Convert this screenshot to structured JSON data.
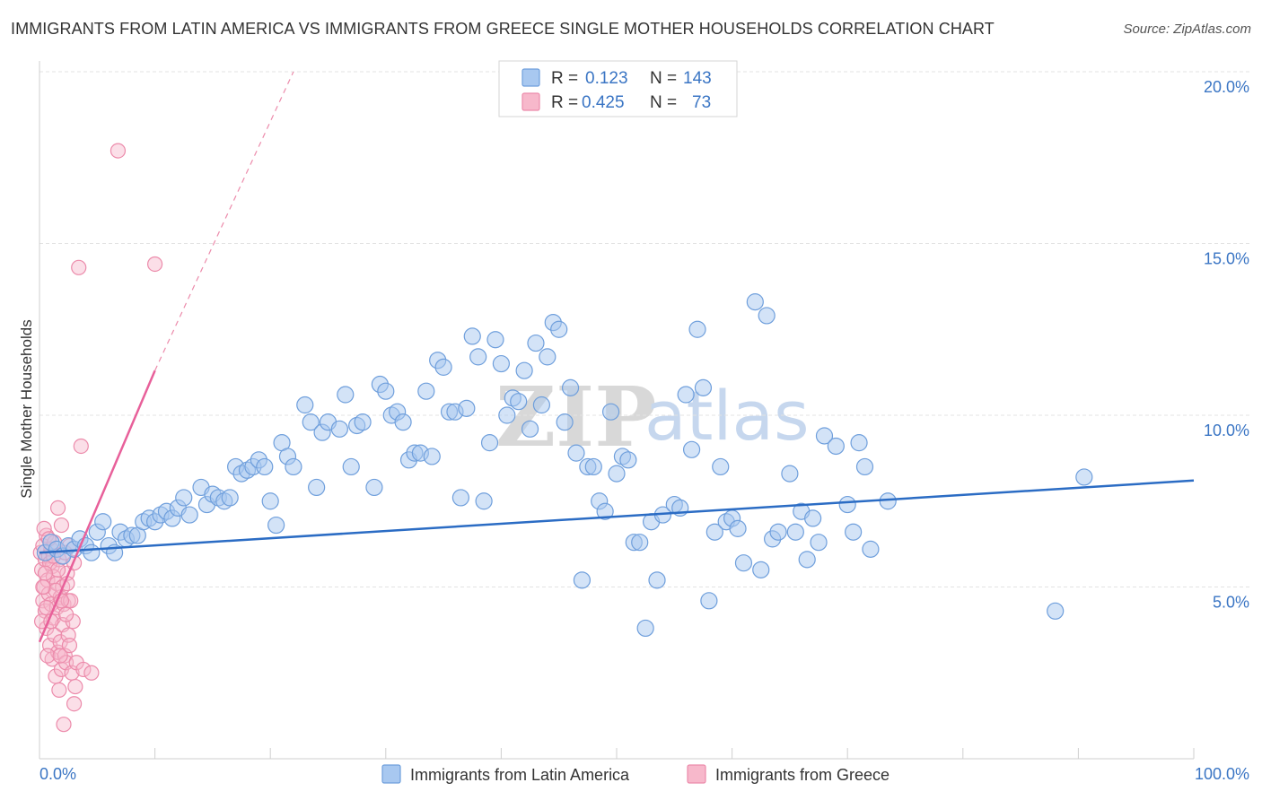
{
  "title": "IMMIGRANTS FROM LATIN AMERICA VS IMMIGRANTS FROM GREECE SINGLE MOTHER HOUSEHOLDS CORRELATION CHART",
  "source": "Source: ZipAtlas.com",
  "watermark": {
    "zip": "ZIP",
    "atlas": "atlas"
  },
  "colors": {
    "latin_fill": "#a8c8f0",
    "latin_stroke": "#6f9fdc",
    "latin_line": "#2b6cc4",
    "greece_fill": "#f7b8cb",
    "greece_stroke": "#ec8bab",
    "greece_line": "#e8609a",
    "tick_text": "#3a75c4",
    "grid": "#e3e3e3"
  },
  "legend": {
    "rows": [
      {
        "r_label": "R =",
        "r_value": "0.123",
        "n_label": "N =",
        "n_value": "143",
        "series": "latin"
      },
      {
        "r_label": "R =",
        "r_value": "0.425",
        "n_label": "N =",
        "n_value": "73",
        "series": "greece"
      }
    ]
  },
  "chart_data": {
    "type": "scatter",
    "title": "IMMIGRANTS FROM LATIN AMERICA VS IMMIGRANTS FROM GREECE SINGLE MOTHER HOUSEHOLDS CORRELATION CHART",
    "xlabel": "",
    "ylabel": "Single Mother Households",
    "xlim": [
      0,
      100
    ],
    "ylim": [
      0,
      20
    ],
    "x_tick_labels": [
      "0.0%",
      "100.0%"
    ],
    "y_ticks": [
      5,
      10,
      15,
      20
    ],
    "y_tick_labels": [
      "5.0%",
      "10.0%",
      "15.0%",
      "20.0%"
    ],
    "grid": true,
    "legend_position": "top-center",
    "series": [
      {
        "name": "Immigrants from Latin America",
        "color": "#a8c8f0",
        "r": 0.123,
        "n": 143,
        "trend": {
          "x": [
            0,
            100
          ],
          "y": [
            6.0,
            8.1
          ]
        },
        "points": [
          [
            0.5,
            6.0
          ],
          [
            1.0,
            6.3
          ],
          [
            1.5,
            6.1
          ],
          [
            2.0,
            5.9
          ],
          [
            2.5,
            6.2
          ],
          [
            3.0,
            6.1
          ],
          [
            3.5,
            6.4
          ],
          [
            4.0,
            6.2
          ],
          [
            4.5,
            6.0
          ],
          [
            5.0,
            6.6
          ],
          [
            5.5,
            6.9
          ],
          [
            6.0,
            6.2
          ],
          [
            6.5,
            6.0
          ],
          [
            7.0,
            6.6
          ],
          [
            7.5,
            6.4
          ],
          [
            8.0,
            6.5
          ],
          [
            8.5,
            6.5
          ],
          [
            9.0,
            6.9
          ],
          [
            9.5,
            7.0
          ],
          [
            10.0,
            6.9
          ],
          [
            10.5,
            7.1
          ],
          [
            11.0,
            7.2
          ],
          [
            11.5,
            7.0
          ],
          [
            12.0,
            7.3
          ],
          [
            12.5,
            7.6
          ],
          [
            13.0,
            7.1
          ],
          [
            14.0,
            7.9
          ],
          [
            14.5,
            7.4
          ],
          [
            15.0,
            7.7
          ],
          [
            15.5,
            7.6
          ],
          [
            16.0,
            7.5
          ],
          [
            16.5,
            7.6
          ],
          [
            17.0,
            8.5
          ],
          [
            17.5,
            8.3
          ],
          [
            18.0,
            8.4
          ],
          [
            18.5,
            8.5
          ],
          [
            19.0,
            8.7
          ],
          [
            19.5,
            8.5
          ],
          [
            20.0,
            7.5
          ],
          [
            20.5,
            6.8
          ],
          [
            21.0,
            9.2
          ],
          [
            21.5,
            8.8
          ],
          [
            22.0,
            8.5
          ],
          [
            23.0,
            10.3
          ],
          [
            23.5,
            9.8
          ],
          [
            24.0,
            7.9
          ],
          [
            24.5,
            9.5
          ],
          [
            25.0,
            9.8
          ],
          [
            26.0,
            9.6
          ],
          [
            26.5,
            10.6
          ],
          [
            27.0,
            8.5
          ],
          [
            27.5,
            9.7
          ],
          [
            28.0,
            9.8
          ],
          [
            29.0,
            7.9
          ],
          [
            29.5,
            10.9
          ],
          [
            30.0,
            10.7
          ],
          [
            30.5,
            10.0
          ],
          [
            31.0,
            10.1
          ],
          [
            31.5,
            9.8
          ],
          [
            32.0,
            8.7
          ],
          [
            32.5,
            8.9
          ],
          [
            33.0,
            8.9
          ],
          [
            33.5,
            10.7
          ],
          [
            34.0,
            8.8
          ],
          [
            34.5,
            11.6
          ],
          [
            35.0,
            11.4
          ],
          [
            35.5,
            10.1
          ],
          [
            36.0,
            10.1
          ],
          [
            36.5,
            7.6
          ],
          [
            37.0,
            10.2
          ],
          [
            37.5,
            12.3
          ],
          [
            38.0,
            11.7
          ],
          [
            38.5,
            7.5
          ],
          [
            39.0,
            9.2
          ],
          [
            39.5,
            12.2
          ],
          [
            40.0,
            11.5
          ],
          [
            40.5,
            10.0
          ],
          [
            41.0,
            10.5
          ],
          [
            41.5,
            10.4
          ],
          [
            42.0,
            11.3
          ],
          [
            42.5,
            9.6
          ],
          [
            43.0,
            12.1
          ],
          [
            43.5,
            10.3
          ],
          [
            44.0,
            11.7
          ],
          [
            44.5,
            12.7
          ],
          [
            45.0,
            12.5
          ],
          [
            45.5,
            9.8
          ],
          [
            46.0,
            10.8
          ],
          [
            46.5,
            8.9
          ],
          [
            47.0,
            5.2
          ],
          [
            47.5,
            8.5
          ],
          [
            48.0,
            8.5
          ],
          [
            48.5,
            7.5
          ],
          [
            49.0,
            7.2
          ],
          [
            49.5,
            10.1
          ],
          [
            50.0,
            8.3
          ],
          [
            50.5,
            8.8
          ],
          [
            51.0,
            8.7
          ],
          [
            51.5,
            6.3
          ],
          [
            52.0,
            6.3
          ],
          [
            52.5,
            3.8
          ],
          [
            53.0,
            6.9
          ],
          [
            53.5,
            5.2
          ],
          [
            54.0,
            7.1
          ],
          [
            55.0,
            7.4
          ],
          [
            55.5,
            7.3
          ],
          [
            56.0,
            10.6
          ],
          [
            56.5,
            9.0
          ],
          [
            57.0,
            12.5
          ],
          [
            57.5,
            10.8
          ],
          [
            58.0,
            4.6
          ],
          [
            58.5,
            6.6
          ],
          [
            59.0,
            8.5
          ],
          [
            59.5,
            6.9
          ],
          [
            60.0,
            7.0
          ],
          [
            60.5,
            6.7
          ],
          [
            61.0,
            5.7
          ],
          [
            62.0,
            13.3
          ],
          [
            62.5,
            5.5
          ],
          [
            63.0,
            12.9
          ],
          [
            63.5,
            6.4
          ],
          [
            64.0,
            6.6
          ],
          [
            65.0,
            8.3
          ],
          [
            65.5,
            6.6
          ],
          [
            66.0,
            7.2
          ],
          [
            66.5,
            5.8
          ],
          [
            67.0,
            7.0
          ],
          [
            67.5,
            6.3
          ],
          [
            68.0,
            9.4
          ],
          [
            69.0,
            9.1
          ],
          [
            70.0,
            7.4
          ],
          [
            70.5,
            6.6
          ],
          [
            71.0,
            9.2
          ],
          [
            71.5,
            8.5
          ],
          [
            72.0,
            6.1
          ],
          [
            73.5,
            7.5
          ],
          [
            88.0,
            4.3
          ],
          [
            90.5,
            8.2
          ]
        ]
      },
      {
        "name": "Immigrants from Greece",
        "color": "#f7b8cb",
        "r": 0.425,
        "n": 73,
        "trend": {
          "x": [
            0,
            10
          ],
          "y": [
            3.4,
            11.3
          ]
        },
        "trend_dashed": {
          "x": [
            10,
            22
          ],
          "y": [
            11.3,
            20.0
          ]
        },
        "points": [
          [
            0.1,
            6.0
          ],
          [
            0.2,
            5.5
          ],
          [
            0.3,
            6.2
          ],
          [
            0.3,
            4.6
          ],
          [
            0.4,
            5.0
          ],
          [
            0.5,
            5.8
          ],
          [
            0.5,
            4.3
          ],
          [
            0.6,
            6.5
          ],
          [
            0.6,
            3.8
          ],
          [
            0.7,
            5.2
          ],
          [
            0.8,
            5.9
          ],
          [
            0.8,
            4.8
          ],
          [
            0.9,
            3.3
          ],
          [
            1.0,
            6.1
          ],
          [
            1.0,
            4.5
          ],
          [
            1.1,
            5.6
          ],
          [
            1.1,
            2.9
          ],
          [
            1.2,
            5.3
          ],
          [
            1.2,
            4.1
          ],
          [
            1.3,
            6.3
          ],
          [
            1.3,
            3.6
          ],
          [
            1.4,
            2.4
          ],
          [
            1.5,
            5.1
          ],
          [
            1.5,
            4.4
          ],
          [
            1.6,
            3.1
          ],
          [
            1.6,
            7.3
          ],
          [
            1.7,
            5.8
          ],
          [
            1.7,
            2.0
          ],
          [
            1.8,
            4.7
          ],
          [
            1.8,
            3.4
          ],
          [
            1.9,
            6.8
          ],
          [
            1.9,
            2.6
          ],
          [
            2.0,
            5.0
          ],
          [
            2.0,
            3.9
          ],
          [
            2.1,
            4.5
          ],
          [
            2.1,
            1.0
          ],
          [
            2.2,
            6.0
          ],
          [
            2.2,
            3.0
          ],
          [
            2.3,
            2.8
          ],
          [
            2.4,
            5.4
          ],
          [
            2.5,
            4.6
          ],
          [
            2.5,
            3.6
          ],
          [
            2.6,
            6.2
          ],
          [
            2.7,
            4.6
          ],
          [
            2.8,
            2.5
          ],
          [
            2.9,
            4.0
          ],
          [
            3.0,
            1.6
          ],
          [
            3.0,
            5.7
          ],
          [
            3.1,
            2.1
          ],
          [
            3.2,
            2.8
          ],
          [
            3.4,
            14.3
          ],
          [
            3.6,
            9.1
          ],
          [
            3.8,
            2.6
          ],
          [
            4.5,
            2.5
          ],
          [
            6.8,
            17.7
          ],
          [
            10.0,
            14.4
          ],
          [
            0.4,
            6.7
          ],
          [
            0.9,
            5.7
          ],
          [
            1.4,
            4.9
          ],
          [
            2.3,
            4.2
          ],
          [
            0.2,
            4.0
          ],
          [
            0.7,
            3.0
          ],
          [
            1.6,
            5.5
          ],
          [
            2.6,
            3.3
          ],
          [
            0.5,
            5.4
          ],
          [
            1.0,
            4.0
          ],
          [
            1.9,
            4.6
          ],
          [
            0.3,
            5.0
          ],
          [
            1.2,
            5.9
          ],
          [
            2.4,
            5.1
          ],
          [
            0.6,
            4.4
          ],
          [
            1.8,
            3.0
          ],
          [
            0.8,
            6.4
          ]
        ]
      }
    ]
  },
  "bottom_legend": [
    {
      "label": "Immigrants from Latin America",
      "series": "latin"
    },
    {
      "label": "Immigrants from Greece",
      "series": "greece"
    }
  ]
}
